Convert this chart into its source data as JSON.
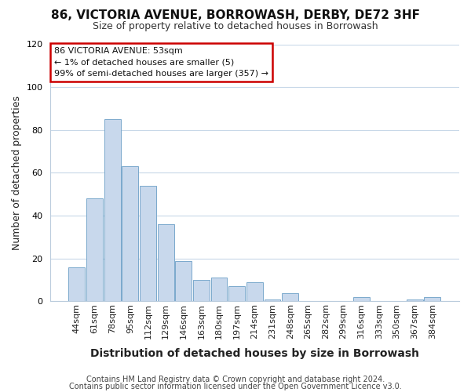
{
  "title_line1": "86, VICTORIA AVENUE, BORROWASH, DERBY, DE72 3HF",
  "title_line2": "Size of property relative to detached houses in Borrowash",
  "xlabel": "Distribution of detached houses by size in Borrowash",
  "ylabel": "Number of detached properties",
  "bar_color": "#c8d8ec",
  "bar_edge_color": "#7aa8cc",
  "annotation_border_color": "#cc0000",
  "annotation_line1": "86 VICTORIA AVENUE: 53sqm",
  "annotation_line2": "← 1% of detached houses are smaller (5)",
  "annotation_line3": "99% of semi-detached houses are larger (357) →",
  "categories": [
    "44sqm",
    "61sqm",
    "78sqm",
    "95sqm",
    "112sqm",
    "129sqm",
    "146sqm",
    "163sqm",
    "180sqm",
    "197sqm",
    "214sqm",
    "231sqm",
    "248sqm",
    "265sqm",
    "282sqm",
    "299sqm",
    "316sqm",
    "333sqm",
    "350sqm",
    "367sqm",
    "384sqm"
  ],
  "values": [
    16,
    48,
    85,
    63,
    54,
    36,
    19,
    10,
    11,
    7,
    9,
    1,
    4,
    0,
    0,
    0,
    2,
    0,
    0,
    1,
    2
  ],
  "ylim": [
    0,
    120
  ],
  "yticks": [
    0,
    20,
    40,
    60,
    80,
    100,
    120
  ],
  "footer_line1": "Contains HM Land Registry data © Crown copyright and database right 2024.",
  "footer_line2": "Contains public sector information licensed under the Open Government Licence v3.0.",
  "bg_color": "#ffffff",
  "grid_color": "#c8d8e8",
  "title_fontsize": 11,
  "subtitle_fontsize": 9,
  "xlabel_fontsize": 10,
  "ylabel_fontsize": 9,
  "tick_fontsize": 8,
  "footer_fontsize": 7
}
